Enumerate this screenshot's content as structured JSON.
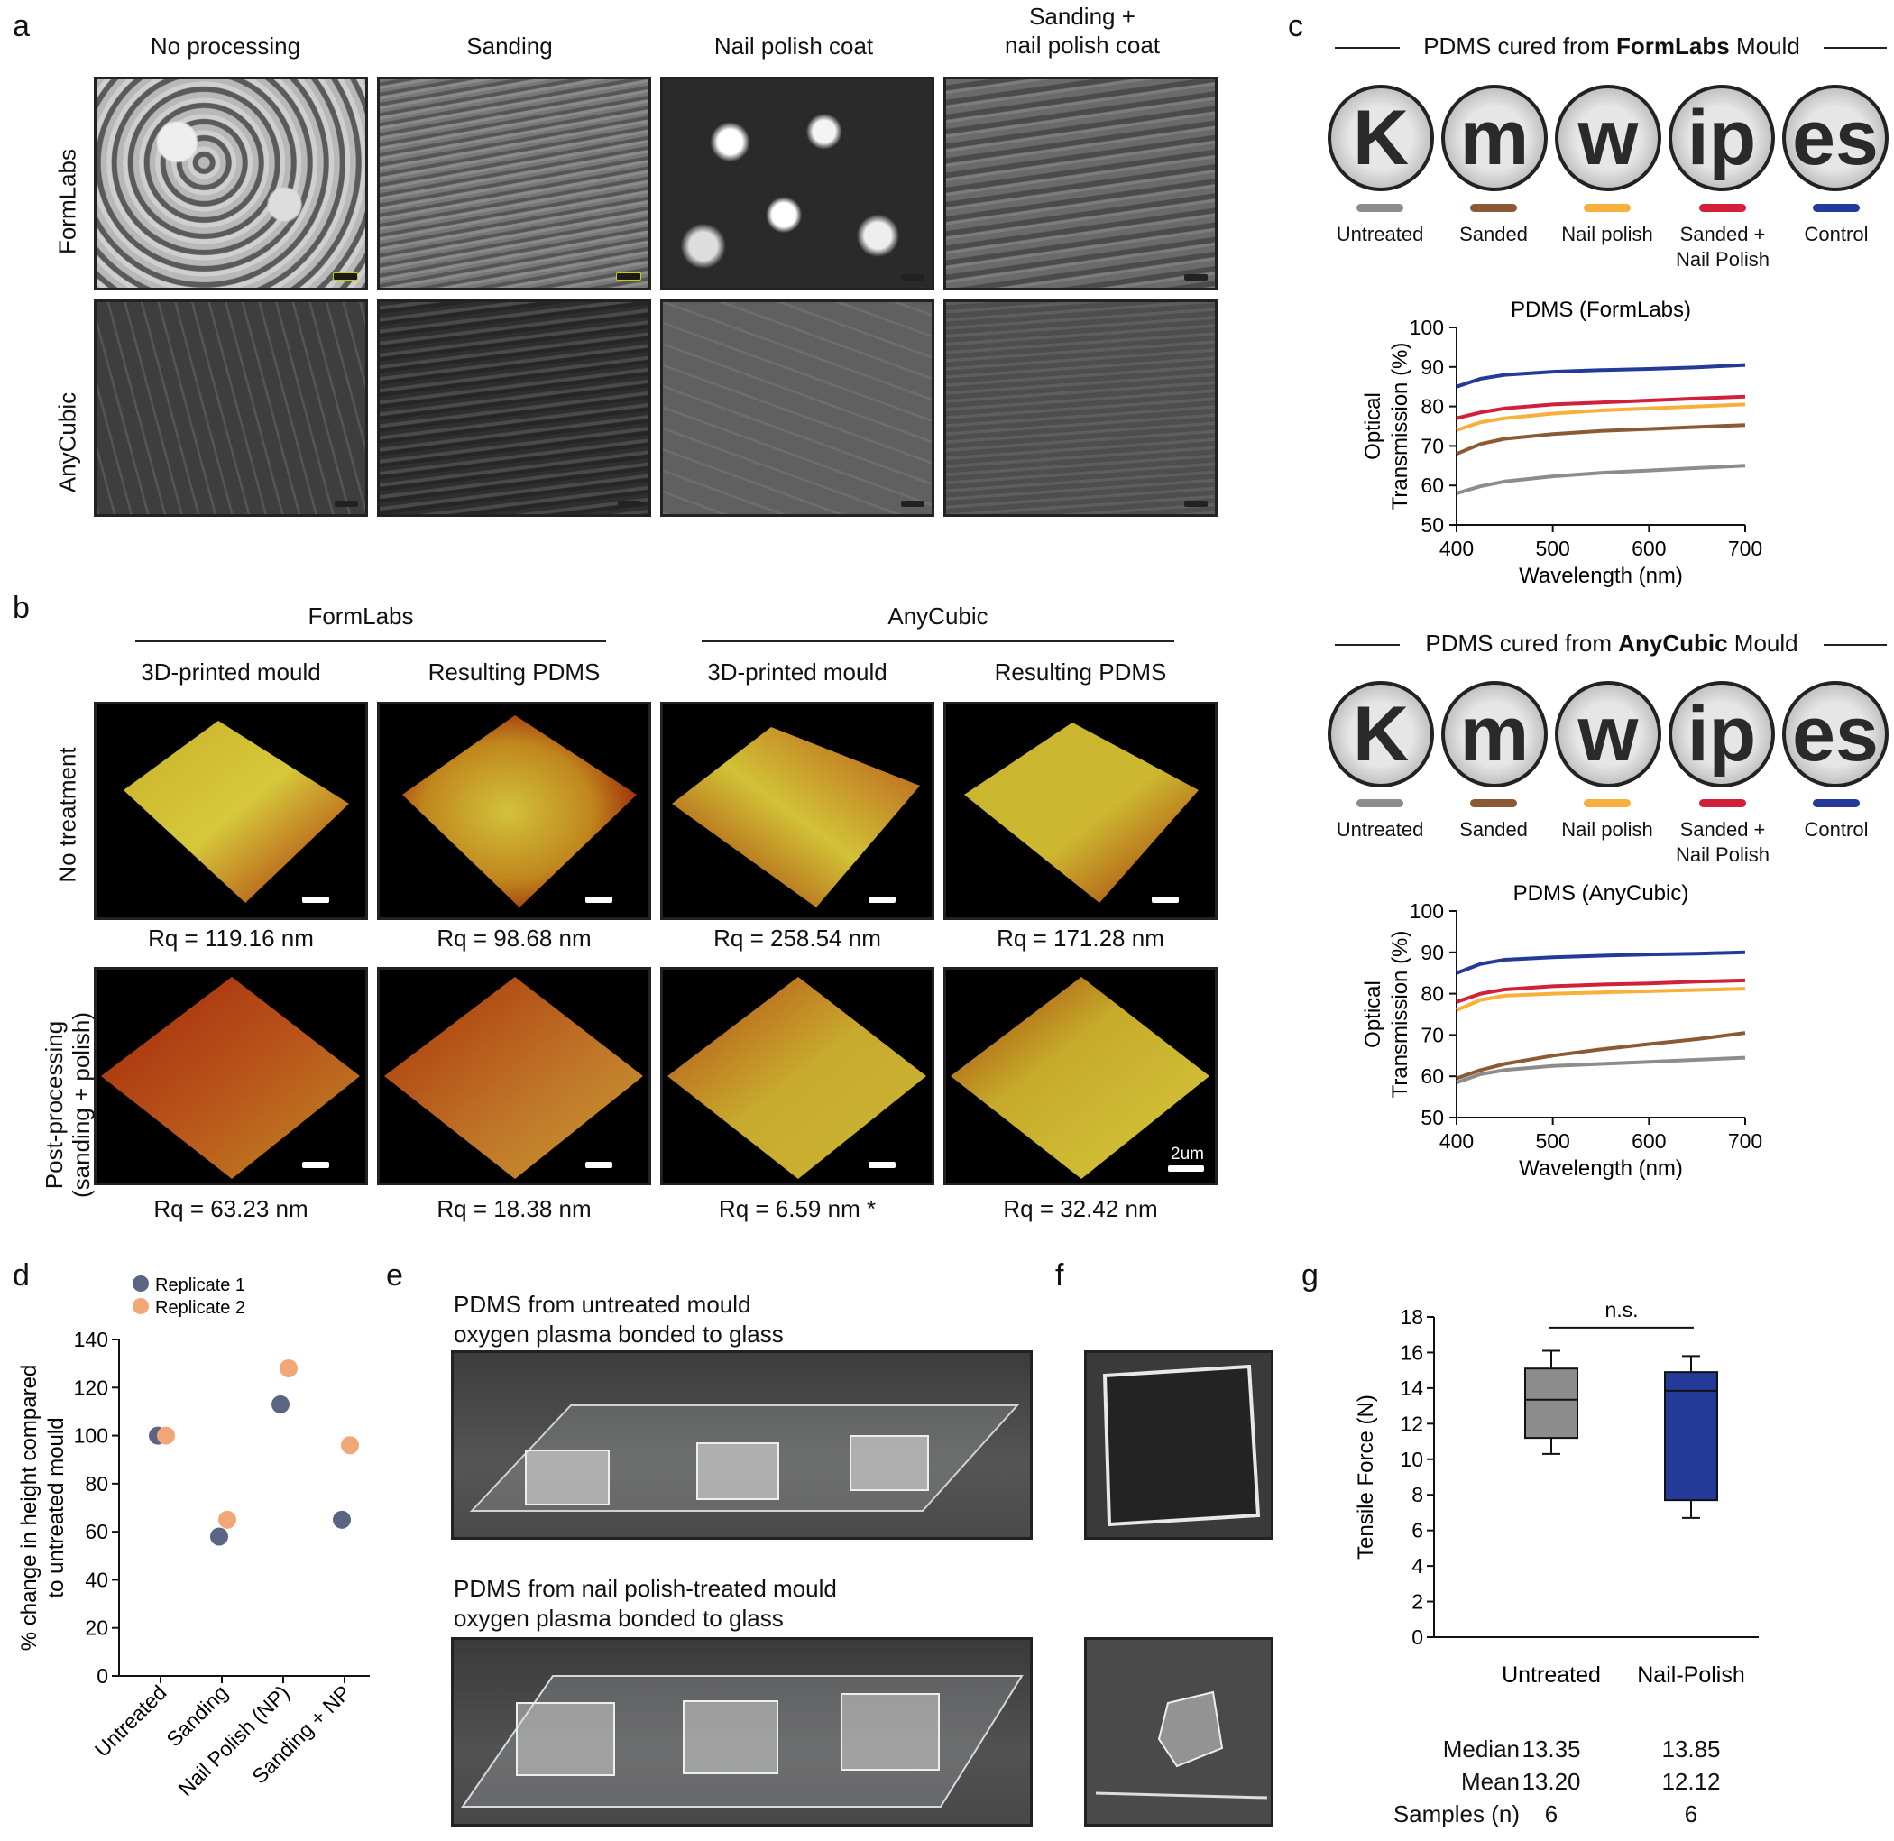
{
  "panels": {
    "a": "a",
    "b": "b",
    "c": "c",
    "d": "d",
    "e": "e",
    "f": "f",
    "g": "g"
  },
  "a": {
    "col_headers": [
      "No processing",
      "Sanding",
      "Nail polish coat",
      "Sanding +\nnail polish coat"
    ],
    "row_labels": [
      "FormLabs",
      "AnyCubic"
    ]
  },
  "b": {
    "groups": [
      "FormLabs",
      "AnyCubic"
    ],
    "sub_headers": [
      "3D-printed mould",
      "Resulting PDMS",
      "3D-printed mould",
      "Resulting PDMS"
    ],
    "row_labels": [
      "No treatment",
      "Post-processing\n(sanding + polish)"
    ],
    "rq_row1": [
      "Rq =  119.16 nm",
      "Rq = 98.68 nm",
      "Rq =  258.54 nm",
      "Rq = 171.28 nm"
    ],
    "rq_row2": [
      "Rq =  63.23 nm",
      "Rq = 18.38 nm",
      "Rq =  6.59 nm *",
      "Rq = 32.42 nm"
    ],
    "scale_label": "2um"
  },
  "c": {
    "title1_pre": "PDMS cured from ",
    "title1_bold": "FormLabs",
    "title1_post": " Mould",
    "title2_pre": "PDMS cured from ",
    "title2_bold": "AnyCubic",
    "title2_post": " Mould",
    "letters": [
      "K",
      "m",
      "w",
      "ip",
      "es"
    ],
    "legend": [
      {
        "label": "Untreated",
        "color": "#8c8c8c"
      },
      {
        "label": "Sanded",
        "color": "#8b5a34"
      },
      {
        "label": "Nail polish",
        "color": "#f7b03c"
      },
      {
        "label": "Sanded +\nNail Polish",
        "color": "#d0203a"
      },
      {
        "label": "Control",
        "color": "#243a98"
      }
    ]
  },
  "chart_data": [
    {
      "type": "line",
      "title": "PDMS (FormLabs)",
      "xlabel": "Wavelength (nm)",
      "ylabel": "Optical\nTransmission (%)",
      "xlim": [
        400,
        700
      ],
      "ylim": [
        50,
        100
      ],
      "xticks": [
        400,
        500,
        600,
        700
      ],
      "yticks": [
        50,
        60,
        70,
        80,
        90,
        100
      ],
      "x": [
        400,
        425,
        450,
        500,
        550,
        600,
        650,
        700
      ],
      "series": [
        {
          "name": "Control",
          "color": "#243a98",
          "values": [
            85.0,
            87.0,
            88.0,
            88.8,
            89.2,
            89.5,
            89.9,
            90.5
          ]
        },
        {
          "name": "Sanded + Nail Polish",
          "color": "#d0203a",
          "values": [
            77.0,
            78.5,
            79.5,
            80.5,
            81.0,
            81.5,
            82.0,
            82.5
          ]
        },
        {
          "name": "Nail polish",
          "color": "#f7b03c",
          "values": [
            74.0,
            76.0,
            77.0,
            78.2,
            79.0,
            79.5,
            80.0,
            80.5
          ]
        },
        {
          "name": "Sanded",
          "color": "#8b5a34",
          "values": [
            68.0,
            70.5,
            71.8,
            73.0,
            73.8,
            74.3,
            74.8,
            75.3
          ]
        },
        {
          "name": "Untreated",
          "color": "#8c8c8c",
          "values": [
            58.0,
            59.8,
            61.0,
            62.3,
            63.2,
            63.8,
            64.4,
            65.0
          ]
        }
      ]
    },
    {
      "type": "line",
      "title": "PDMS (AnyCubic)",
      "xlabel": "Wavelength (nm)",
      "ylabel": "Optical\nTransmission (%)",
      "xlim": [
        400,
        700
      ],
      "ylim": [
        50,
        100
      ],
      "xticks": [
        400,
        500,
        600,
        700
      ],
      "yticks": [
        50,
        60,
        70,
        80,
        90,
        100
      ],
      "x": [
        400,
        425,
        450,
        500,
        550,
        600,
        650,
        700
      ],
      "series": [
        {
          "name": "Control",
          "color": "#243a98",
          "values": [
            85.0,
            87.2,
            88.2,
            88.8,
            89.2,
            89.5,
            89.7,
            90.0
          ]
        },
        {
          "name": "Sanded + Nail Polish",
          "color": "#d0203a",
          "values": [
            78.0,
            80.0,
            81.0,
            81.8,
            82.2,
            82.5,
            82.9,
            83.2
          ]
        },
        {
          "name": "Nail polish",
          "color": "#f7b03c",
          "values": [
            76.0,
            78.5,
            79.5,
            80.0,
            80.3,
            80.6,
            80.9,
            81.2
          ]
        },
        {
          "name": "Sanded",
          "color": "#8b5a34",
          "values": [
            59.5,
            61.5,
            63.0,
            65.0,
            66.5,
            67.8,
            69.0,
            70.5
          ]
        },
        {
          "name": "Untreated",
          "color": "#8c8c8c",
          "values": [
            58.5,
            60.5,
            61.5,
            62.5,
            63.0,
            63.5,
            64.0,
            64.5
          ]
        }
      ]
    },
    {
      "type": "scatter",
      "ylabel": "% change in height compared\nto untreated mould",
      "ylim": [
        0,
        140
      ],
      "yticks": [
        0,
        20,
        40,
        60,
        80,
        100,
        120,
        140
      ],
      "categories": [
        "Untreated",
        "Sanding",
        "Nail Polish (NP)",
        "Sanding + NP"
      ],
      "series": [
        {
          "name": "Replicate 1",
          "color": "#5a6483",
          "values": [
            100,
            58,
            113,
            65
          ]
        },
        {
          "name": "Replicate 2",
          "color": "#f2a876",
          "values": [
            100,
            65,
            128,
            96
          ]
        }
      ]
    },
    {
      "type": "box",
      "ylabel": "Tensile Force (N)",
      "ylim": [
        0,
        18
      ],
      "yticks": [
        0,
        2,
        4,
        6,
        8,
        10,
        12,
        14,
        16,
        18
      ],
      "categories": [
        "Untreated",
        "Nail-Polish"
      ],
      "boxes": [
        {
          "name": "Untreated",
          "color": "#8c8c8c",
          "min": 10.3,
          "q1": 11.2,
          "median": 13.35,
          "q3": 15.1,
          "max": 16.1
        },
        {
          "name": "Nail-Polish",
          "color": "#243a98",
          "min": 6.7,
          "q1": 7.7,
          "median": 13.85,
          "q3": 14.9,
          "max": 15.8
        }
      ],
      "annotation": "n.s.",
      "stats": {
        "labels": [
          "Median",
          "Mean",
          "Samples (n)"
        ],
        "untreated": [
          "13.35",
          "13.20",
          "6"
        ],
        "nail_polish": [
          "13.85",
          "12.12",
          "6"
        ]
      }
    }
  ],
  "e": {
    "caption1": "PDMS from untreated mould\noxygen plasma bonded to glass",
    "caption2": "PDMS from nail polish-treated mould\noxygen plasma bonded to glass"
  }
}
